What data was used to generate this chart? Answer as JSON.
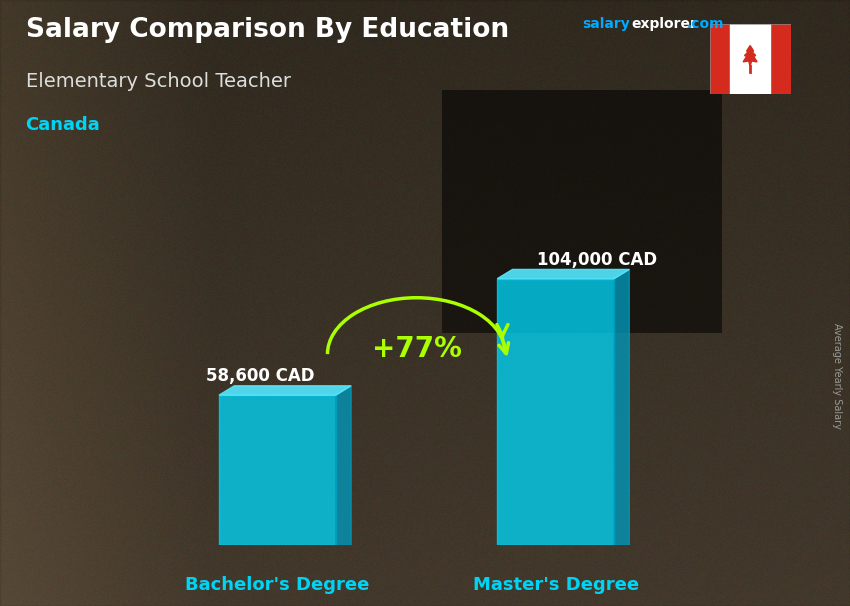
{
  "title": "Salary Comparison By Education",
  "subtitle": "Elementary School Teacher",
  "country": "Canada",
  "categories": [
    "Bachelor's Degree",
    "Master's Degree"
  ],
  "values": [
    58600,
    104000
  ],
  "value_labels": [
    "58,600 CAD",
    "104,000 CAD"
  ],
  "pct_change": "+77%",
  "bar_color_main": "#00d4f5",
  "bar_color_dark": "#0099bb",
  "bar_color_top": "#55e8ff",
  "title_color": "#ffffff",
  "subtitle_color": "#cccccc",
  "country_color": "#00d4f5",
  "salary_label_color": "#ffffff",
  "pct_color": "#aaff00",
  "salary_color": "#00aaff",
  "explorer_color": "#ffffff",
  "com_color": "#00aaff",
  "xlabel_color": "#00d4f5",
  "rotated_label": "Average Yearly Salary",
  "bg_colors": [
    "#7a6a55",
    "#6a5a45",
    "#5a4a35",
    "#7a6a55"
  ],
  "ylim": [
    0,
    130000
  ],
  "bar_alpha": 0.78
}
